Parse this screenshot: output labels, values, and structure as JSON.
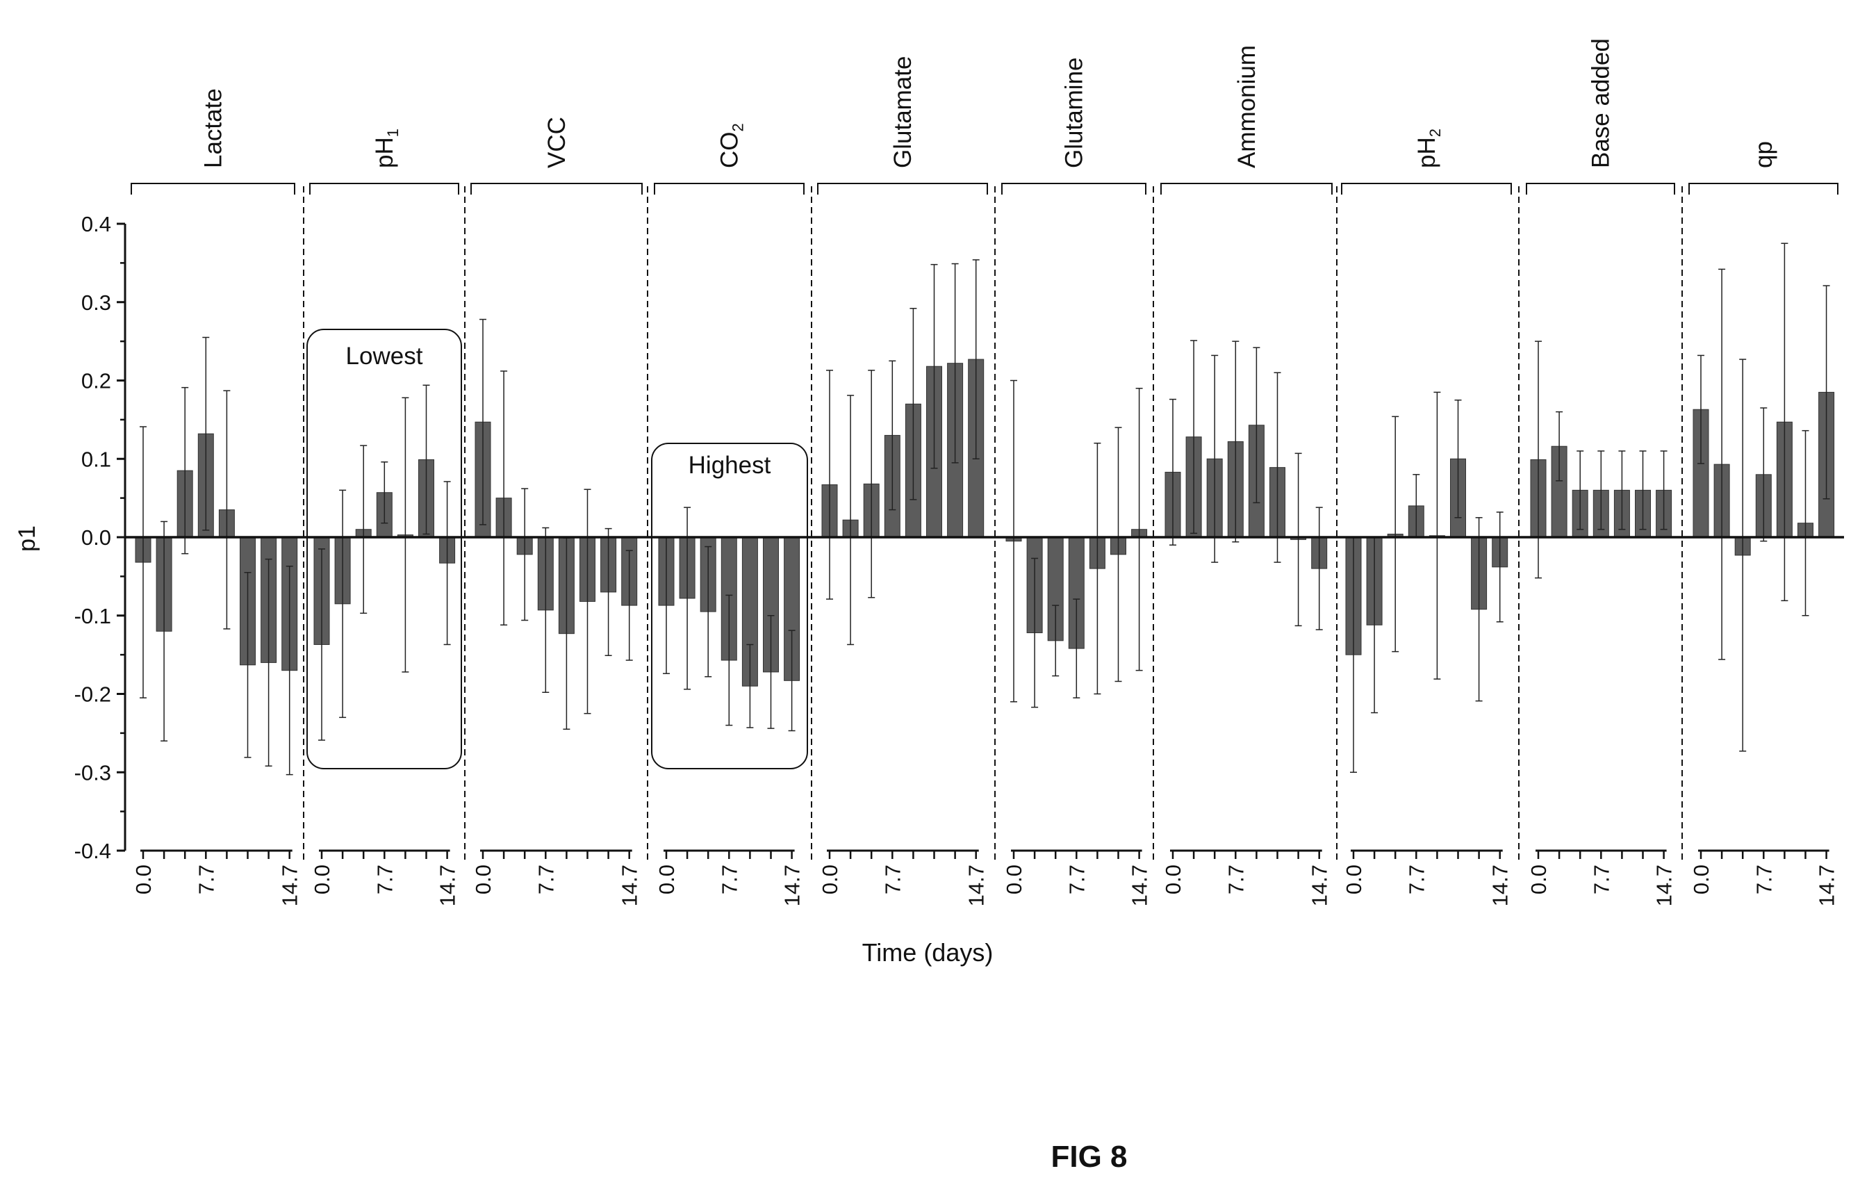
{
  "figure_label": "FIG 8",
  "chart_data": {
    "type": "bar",
    "title": "",
    "xlabel": "Time (days)",
    "ylabel": "p1",
    "ylim": [
      -0.4,
      0.4
    ],
    "yticks": [
      "0.4",
      "0.3",
      "0.2",
      "0.1",
      "0.0",
      "-0.1",
      "-0.2",
      "-0.3",
      "-0.4"
    ],
    "xticks": [
      "0.0",
      "7.7",
      "14.7"
    ],
    "grid": false,
    "colors": {
      "bar": "#5c5c5c",
      "axis": "#111111"
    },
    "groups": [
      {
        "name": "Lactate",
        "sub": "",
        "values": [
          -0.032,
          -0.12,
          0.085,
          0.132,
          0.035,
          -0.163,
          -0.16,
          -0.17
        ],
        "err": [
          0.173,
          0.14,
          0.106,
          0.123,
          0.152,
          0.118,
          0.132,
          0.133
        ]
      },
      {
        "name": "pH",
        "sub": "1",
        "values": [
          -0.137,
          -0.085,
          0.01,
          0.057,
          0.003,
          0.099,
          -0.033
        ],
        "err": [
          0.122,
          0.145,
          0.107,
          0.039,
          0.175,
          0.095,
          0.104
        ]
      },
      {
        "name": "VCC",
        "sub": "",
        "values": [
          0.147,
          0.05,
          -0.022,
          -0.093,
          -0.123,
          -0.082,
          -0.07,
          -0.087
        ],
        "err": [
          0.131,
          0.162,
          0.084,
          0.105,
          0.122,
          0.143,
          0.081,
          0.07
        ]
      },
      {
        "name": "CO",
        "sub": "2",
        "values": [
          -0.087,
          -0.078,
          -0.095,
          -0.157,
          -0.19,
          -0.172,
          -0.183
        ],
        "err": [
          0.087,
          0.116,
          0.083,
          0.083,
          0.053,
          0.072,
          0.064
        ]
      },
      {
        "name": "Glutamate",
        "sub": "",
        "values": [
          0.067,
          0.022,
          0.068,
          0.13,
          0.17,
          0.218,
          0.222,
          0.227
        ],
        "err": [
          0.146,
          0.159,
          0.145,
          0.095,
          0.122,
          0.13,
          0.127,
          0.127
        ]
      },
      {
        "name": "Glutamine",
        "sub": "",
        "values": [
          -0.005,
          -0.122,
          -0.132,
          -0.142,
          -0.04,
          -0.022,
          0.01
        ],
        "err": [
          0.205,
          0.095,
          0.045,
          0.063,
          0.16,
          0.162,
          0.18
        ]
      },
      {
        "name": "Ammonium",
        "sub": "",
        "values": [
          0.083,
          0.128,
          0.1,
          0.122,
          0.143,
          0.089,
          -0.003,
          -0.04
        ],
        "err": [
          0.093,
          0.123,
          0.132,
          0.128,
          0.099,
          0.121,
          0.11,
          0.078
        ]
      },
      {
        "name": "pH",
        "sub": "2",
        "values": [
          -0.15,
          -0.112,
          0.004,
          0.04,
          0.002,
          0.1,
          -0.092,
          -0.038
        ],
        "err": [
          0.15,
          0.112,
          0.15,
          0.04,
          0.183,
          0.075,
          0.117,
          0.07
        ]
      },
      {
        "name": "Base added",
        "sub": "",
        "values": [
          0.099,
          0.116,
          0.06,
          0.06,
          0.06,
          0.06,
          0.06
        ],
        "err": [
          0.151,
          0.044,
          0.05,
          0.05,
          0.05,
          0.05,
          0.05
        ]
      },
      {
        "name": "qp",
        "sub": "",
        "values": [
          0.163,
          0.093,
          -0.023,
          0.08,
          0.147,
          0.018,
          0.185
        ],
        "err": [
          0.069,
          0.249,
          0.25,
          0.085,
          0.228,
          0.118,
          0.136
        ]
      }
    ],
    "annotations": [
      {
        "text": "Lowest",
        "group": 1
      },
      {
        "text": "Highest",
        "group": 3
      }
    ]
  }
}
